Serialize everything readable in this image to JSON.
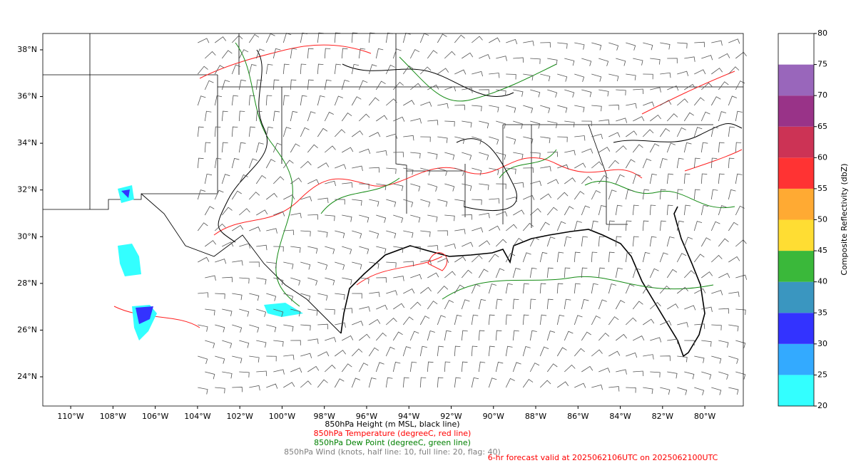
{
  "map": {
    "xlim": [
      -111.32,
      -78.18
    ],
    "ylim": [
      22.75,
      38.7
    ],
    "xticks": [
      {
        "value": -110,
        "label": "110°W"
      },
      {
        "value": -108,
        "label": "108°W"
      },
      {
        "value": -106,
        "label": "106°W"
      },
      {
        "value": -104,
        "label": "104°W"
      },
      {
        "value": -102,
        "label": "102°W"
      },
      {
        "value": -100,
        "label": "100°W"
      },
      {
        "value": -98,
        "label": "98°W"
      },
      {
        "value": -96,
        "label": "96°W"
      },
      {
        "value": -94,
        "label": "94°W"
      },
      {
        "value": -92,
        "label": "92°W"
      },
      {
        "value": -90,
        "label": "90°W"
      },
      {
        "value": -88,
        "label": "88°W"
      },
      {
        "value": -86,
        "label": "86°W"
      },
      {
        "value": -84,
        "label": "84°W"
      },
      {
        "value": -82,
        "label": "82°W"
      },
      {
        "value": -80,
        "label": "80°W"
      }
    ],
    "yticks": [
      {
        "value": 24,
        "label": "24°N"
      },
      {
        "value": 26,
        "label": "26°N"
      },
      {
        "value": 28,
        "label": "28°N"
      },
      {
        "value": 30,
        "label": "30°N"
      },
      {
        "value": 32,
        "label": "32°N"
      },
      {
        "value": 34,
        "label": "34°N"
      },
      {
        "value": 36,
        "label": "36°N"
      },
      {
        "value": 38,
        "label": "38°N"
      }
    ],
    "captions": [
      {
        "text": "850hPa Height (m MSL, black line)",
        "color": "#000000"
      },
      {
        "text": "850hPa Temperature (degreeC, red line)",
        "color": "#ff0000"
      },
      {
        "text": "850hPa Dew Point (degreeC, green line)",
        "color": "#008000"
      },
      {
        "text": "850hPa Wind (knots, half line: 10, full line: 20, flag: 40)",
        "color": "#808080"
      }
    ],
    "valid_time": "6-hr forecast valid at 2025062106UTC on 2025062100UTC"
  },
  "colorbar": {
    "label": "Composite Reflectivity (dbZ)",
    "ticks": [
      20,
      25,
      30,
      35,
      40,
      45,
      50,
      55,
      60,
      65,
      70,
      75,
      80
    ],
    "colors": [
      "#33ffff",
      "#33aaff",
      "#3333ff",
      "#3a96c0",
      "#3ab83a",
      "#ffdd33",
      "#ffaa33",
      "#ff3333",
      "#cc3355",
      "#993388",
      "#9966bb",
      "#ffffff"
    ]
  }
}
